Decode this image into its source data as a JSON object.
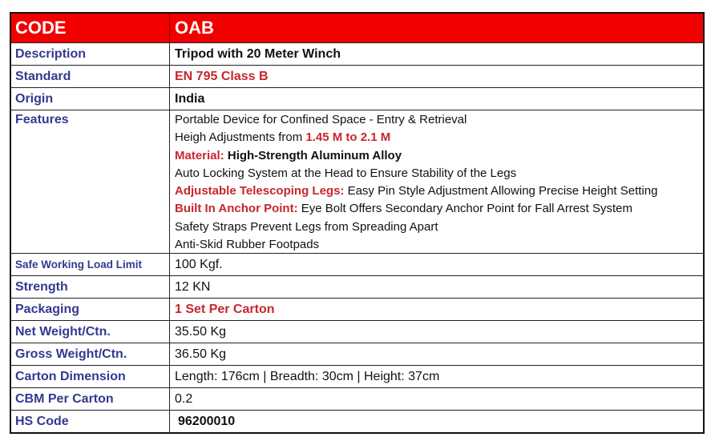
{
  "header": {
    "label": "CODE",
    "value": "OAB"
  },
  "rows": {
    "description": {
      "label": "Description",
      "value": "Tripod with 20 Meter Winch"
    },
    "standard": {
      "label": "Standard",
      "value": "EN 795 Class B"
    },
    "origin": {
      "label": "Origin",
      "value": "India"
    },
    "features": {
      "label": "Features",
      "lines": [
        {
          "text": "Portable Device for Confined Space - Entry & Retrieval"
        },
        {
          "prefix": "Heigh Adjustments from ",
          "highlight": "1.45 M to 2.1 M"
        },
        {
          "highlight": "Material:",
          "suffix": " High-Strength Aluminum Alloy"
        },
        {
          "text": "Auto Locking System at the Head to Ensure Stability of the Legs"
        },
        {
          "highlight": "Adjustable Telescoping Legs:",
          "suffix": " Easy Pin Style Adjustment Allowing Precise Height Setting"
        },
        {
          "highlight": "Built In Anchor Point:",
          "suffix": " Eye Bolt Offers Secondary Anchor Point for Fall Arrest System"
        },
        {
          "text": "Safety Straps Prevent Legs from Spreading Apart"
        },
        {
          "text": "Anti-Skid Rubber Footpads"
        }
      ]
    },
    "swl": {
      "label": "Safe Working Load Limit",
      "value": "100 Kgf."
    },
    "strength": {
      "label": "Strength",
      "value": "12 KN"
    },
    "packaging": {
      "label": "Packaging",
      "value": "1 Set Per Carton"
    },
    "net_weight": {
      "label": "Net Weight/Ctn.",
      "value": "35.50 Kg"
    },
    "gross_weight": {
      "label": "Gross Weight/Ctn.",
      "value": "36.50 Kg"
    },
    "carton_dimension": {
      "label": "Carton Dimension",
      "value": "Length: 176cm | Breadth: 30cm | Height: 37cm"
    },
    "cbm": {
      "label": "CBM Per Carton",
      "value": "0.2"
    },
    "hs_code": {
      "label": "HS Code",
      "value": "96200010"
    }
  },
  "colors": {
    "header_bg": "#f20000",
    "label_text": "#34398f",
    "highlight_text": "#c8262c"
  }
}
